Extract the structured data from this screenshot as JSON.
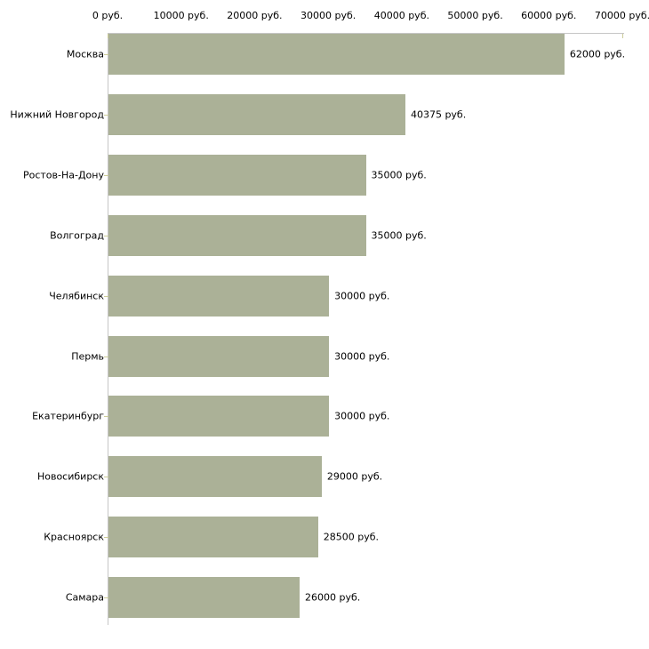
{
  "chart_data": {
    "type": "bar",
    "orientation": "horizontal",
    "title": "",
    "categories": [
      "Москва",
      "Нижний Новгород",
      "Ростов-На-Дону",
      "Волгоград",
      "Челябинск",
      "Пермь",
      "Екатеринбург",
      "Новосибирск",
      "Красноярск",
      "Самара"
    ],
    "values": [
      62000,
      40375,
      35000,
      35000,
      30000,
      30000,
      30000,
      29000,
      28500,
      26000
    ],
    "value_labels": [
      "62000 руб.",
      "40375 руб.",
      "35000 руб.",
      "35000 руб.",
      "30000 руб.",
      "30000 руб.",
      "30000 руб.",
      "29000 руб.",
      "28500 руб.",
      "26000 руб."
    ],
    "x_ticks": [
      {
        "value": 0,
        "label": "0 руб."
      },
      {
        "value": 10000,
        "label": "10000 руб."
      },
      {
        "value": 20000,
        "label": "20000 руб."
      },
      {
        "value": 30000,
        "label": "30000 руб."
      },
      {
        "value": 40000,
        "label": "40000 руб."
      },
      {
        "value": 50000,
        "label": "50000 руб."
      },
      {
        "value": 60000,
        "label": "60000 руб."
      },
      {
        "value": 70000,
        "label": "70000 руб."
      }
    ],
    "xlim": [
      0,
      70000
    ],
    "unit": "руб.",
    "grid": false,
    "legend": false,
    "xlabel": "",
    "ylabel": "",
    "colors": {
      "bar": "#abb197",
      "axis_line": "#c6c6c6",
      "tick": "#cccc99",
      "text": "#000000",
      "background": "#ffffff"
    }
  }
}
